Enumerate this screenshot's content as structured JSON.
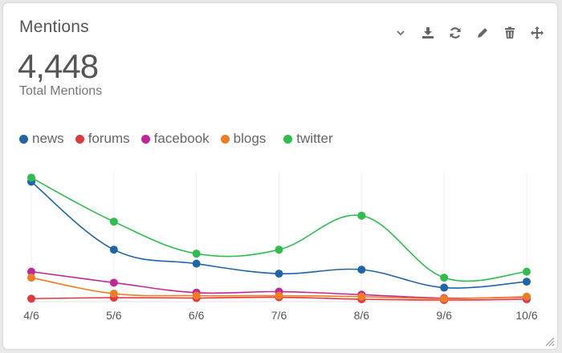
{
  "widget": {
    "title": "Mentions",
    "total": "4,448",
    "total_label": "Total Mentions"
  },
  "toolbar": {
    "icons": [
      "chevron-down-icon",
      "download-icon",
      "refresh-icon",
      "edit-icon",
      "trash-icon",
      "move-icon"
    ],
    "icon_color": "#666666"
  },
  "chart_data": {
    "type": "line",
    "categories": [
      "4/6",
      "5/6",
      "6/6",
      "7/6",
      "8/6",
      "9/6",
      "10/6"
    ],
    "ylim": [
      0,
      650
    ],
    "grid": "vertical",
    "legend": "top-left",
    "series": [
      {
        "name": "news",
        "color": "#1f65a7",
        "values": [
          600,
          260,
          190,
          140,
          160,
          70,
          100
        ]
      },
      {
        "name": "forums",
        "color": "#e0383e",
        "values": [
          15,
          20,
          18,
          22,
          12,
          8,
          12
        ]
      },
      {
        "name": "facebook",
        "color": "#c2279a",
        "values": [
          150,
          95,
          45,
          50,
          35,
          18,
          22
        ]
      },
      {
        "name": "blogs",
        "color": "#ef7d22",
        "values": [
          120,
          40,
          30,
          30,
          25,
          15,
          25
        ]
      },
      {
        "name": "twitter",
        "color": "#2ebd4e",
        "values": [
          620,
          400,
          240,
          260,
          430,
          120,
          150
        ]
      }
    ]
  }
}
